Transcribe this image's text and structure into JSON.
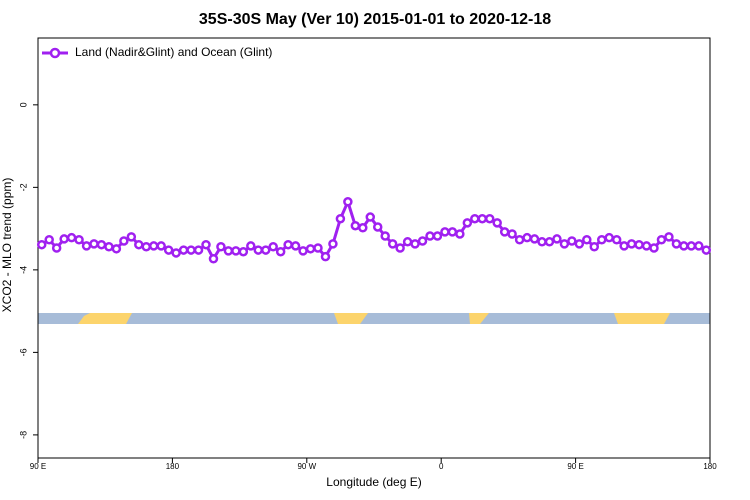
{
  "chart_data": {
    "type": "line",
    "title": "35S-30S May (Ver 10)   2015-01-01 to 2020-12-18",
    "x_label": "Longitude (deg E)",
    "y_label": "XCO2 - MLO trend (ppm)",
    "x": [
      92.5,
      97.5,
      102.5,
      107.5,
      112.5,
      117.5,
      122.5,
      127.5,
      132.5,
      137.5,
      142.5,
      147.5,
      152.5,
      157.5,
      162.5,
      167.5,
      172.5,
      177.5,
      182.5,
      187.5,
      192.5,
      197.5,
      202.5,
      207.5,
      212.5,
      217.5,
      222.5,
      227.5,
      232.5,
      237.5,
      242.5,
      247.5,
      252.5,
      257.5,
      262.5,
      267.5,
      272.5,
      277.5,
      282.5,
      287.5,
      292.5,
      297.5,
      302.5,
      307.5,
      312.5,
      317.5,
      322.5,
      327.5,
      332.5,
      337.5,
      342.5,
      347.5,
      352.5,
      357.5,
      362.5,
      367.5,
      372.5,
      377.5,
      382.5,
      387.5,
      392.5,
      397.5,
      402.5,
      407.5,
      412.5,
      417.5,
      422.5,
      427.5,
      432.5,
      437.5,
      442.5,
      447.5,
      452.5,
      457.5,
      462.5,
      467.5,
      472.5,
      477.5,
      482.5,
      487.5,
      492.5,
      497.5,
      502.5,
      507.5,
      512.5,
      517.5,
      522.5,
      527.5,
      532.5,
      537.5
    ],
    "series": [
      {
        "name": "Land (Nadir&Glint) and Ocean (Glint)",
        "color": "#a020f0",
        "values": [
          -3.39,
          -3.27,
          -3.47,
          -3.25,
          -3.22,
          -3.27,
          -3.42,
          -3.37,
          -3.39,
          -3.44,
          -3.49,
          -3.3,
          -3.2,
          -3.39,
          -3.44,
          -3.42,
          -3.42,
          -3.52,
          -3.59,
          -3.52,
          -3.52,
          -3.52,
          -3.39,
          -3.73,
          -3.44,
          -3.54,
          -3.54,
          -3.56,
          -3.42,
          -3.52,
          -3.52,
          -3.44,
          -3.56,
          -3.39,
          -3.42,
          -3.54,
          -3.49,
          -3.47,
          -3.68,
          -3.37,
          -2.76,
          -2.35,
          -2.93,
          -2.98,
          -2.72,
          -2.96,
          -3.18,
          -3.37,
          -3.47,
          -3.32,
          -3.37,
          -3.3,
          -3.18,
          -3.18,
          -3.08,
          -3.08,
          -3.13,
          -2.86,
          -2.76,
          -2.76,
          -2.76,
          -2.86,
          -3.08,
          -3.13,
          -3.27,
          -3.22,
          -3.25,
          -3.32,
          -3.32,
          -3.25,
          -3.37,
          -3.3,
          -3.37,
          -3.27,
          -3.44,
          -3.27,
          -3.22,
          -3.27,
          -3.42,
          -3.37,
          -3.39,
          -3.42,
          -3.47,
          -3.27,
          -3.2,
          -3.37,
          -3.42,
          -3.42,
          -3.42,
          -3.52
        ]
      }
    ],
    "xlim": [
      90,
      540
    ],
    "xticks": [
      {
        "value": 90,
        "label": "90 E"
      },
      180,
      {
        "value": 270,
        "label": "90 W"
      },
      {
        "value": 360,
        "label": "0"
      },
      {
        "value": 450,
        "label": "90 E"
      },
      {
        "value": 540,
        "label": "180"
      }
    ],
    "ylim": [
      -8.56,
      1.62
    ],
    "yticks": [
      -8,
      -6,
      -4,
      -2,
      0
    ],
    "legend": "top-left"
  }
}
